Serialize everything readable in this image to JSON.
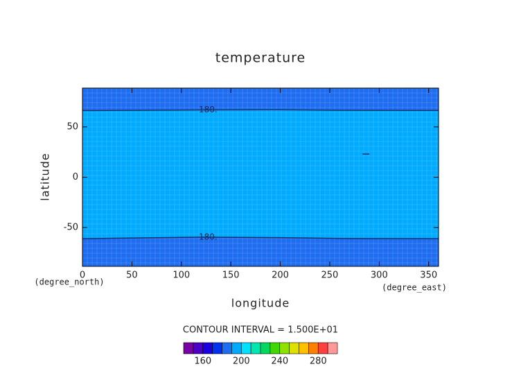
{
  "chart_data": {
    "type": "contour",
    "title": "temperature",
    "x_label": "longitude",
    "y_label": "latitude",
    "x_unit": "(degree_east)",
    "y_unit": "(degree_north)",
    "xlim": [
      0,
      360
    ],
    "ylim": [
      -88.5,
      88.5
    ],
    "xticks": [
      0,
      50,
      100,
      150,
      200,
      250,
      300,
      350
    ],
    "yticks": [
      -50,
      0,
      50
    ],
    "outer_color": "#1f6ef2",
    "inner_color": "#00aaff",
    "contours": [
      {
        "level": 180,
        "label": "180.",
        "x": [
          0,
          60,
          120,
          200,
          260,
          360
        ],
        "y": [
          66.2,
          66.5,
          66.8,
          67,
          66.5,
          66.3
        ]
      },
      {
        "level": 180,
        "label": "180.",
        "x": [
          0,
          60,
          120,
          200,
          260,
          360
        ],
        "y": [
          -61,
          -60.3,
          -59.5,
          -60,
          -60.8,
          -61
        ]
      },
      {
        "level": 180,
        "x": [
          283,
          290
        ],
        "y": [
          23,
          23
        ]
      }
    ],
    "contour_interval_label": "CONTOUR INTERVAL = 1.500E+01",
    "colorbar": {
      "levels": [
        140,
        150,
        160,
        170,
        180,
        190,
        200,
        210,
        220,
        230,
        240,
        250,
        260,
        270,
        280,
        290,
        300
      ],
      "colors": [
        "#7a00a8",
        "#4a00c8",
        "#1a00e0",
        "#0030f0",
        "#1f6ef2",
        "#00aaff",
        "#00e0ff",
        "#00e8b0",
        "#00d860",
        "#40d800",
        "#90e000",
        "#e0e000",
        "#ffc000",
        "#ff8000",
        "#ff4040",
        "#ff9898"
      ],
      "ticks": [
        160,
        200,
        240,
        280
      ]
    }
  }
}
